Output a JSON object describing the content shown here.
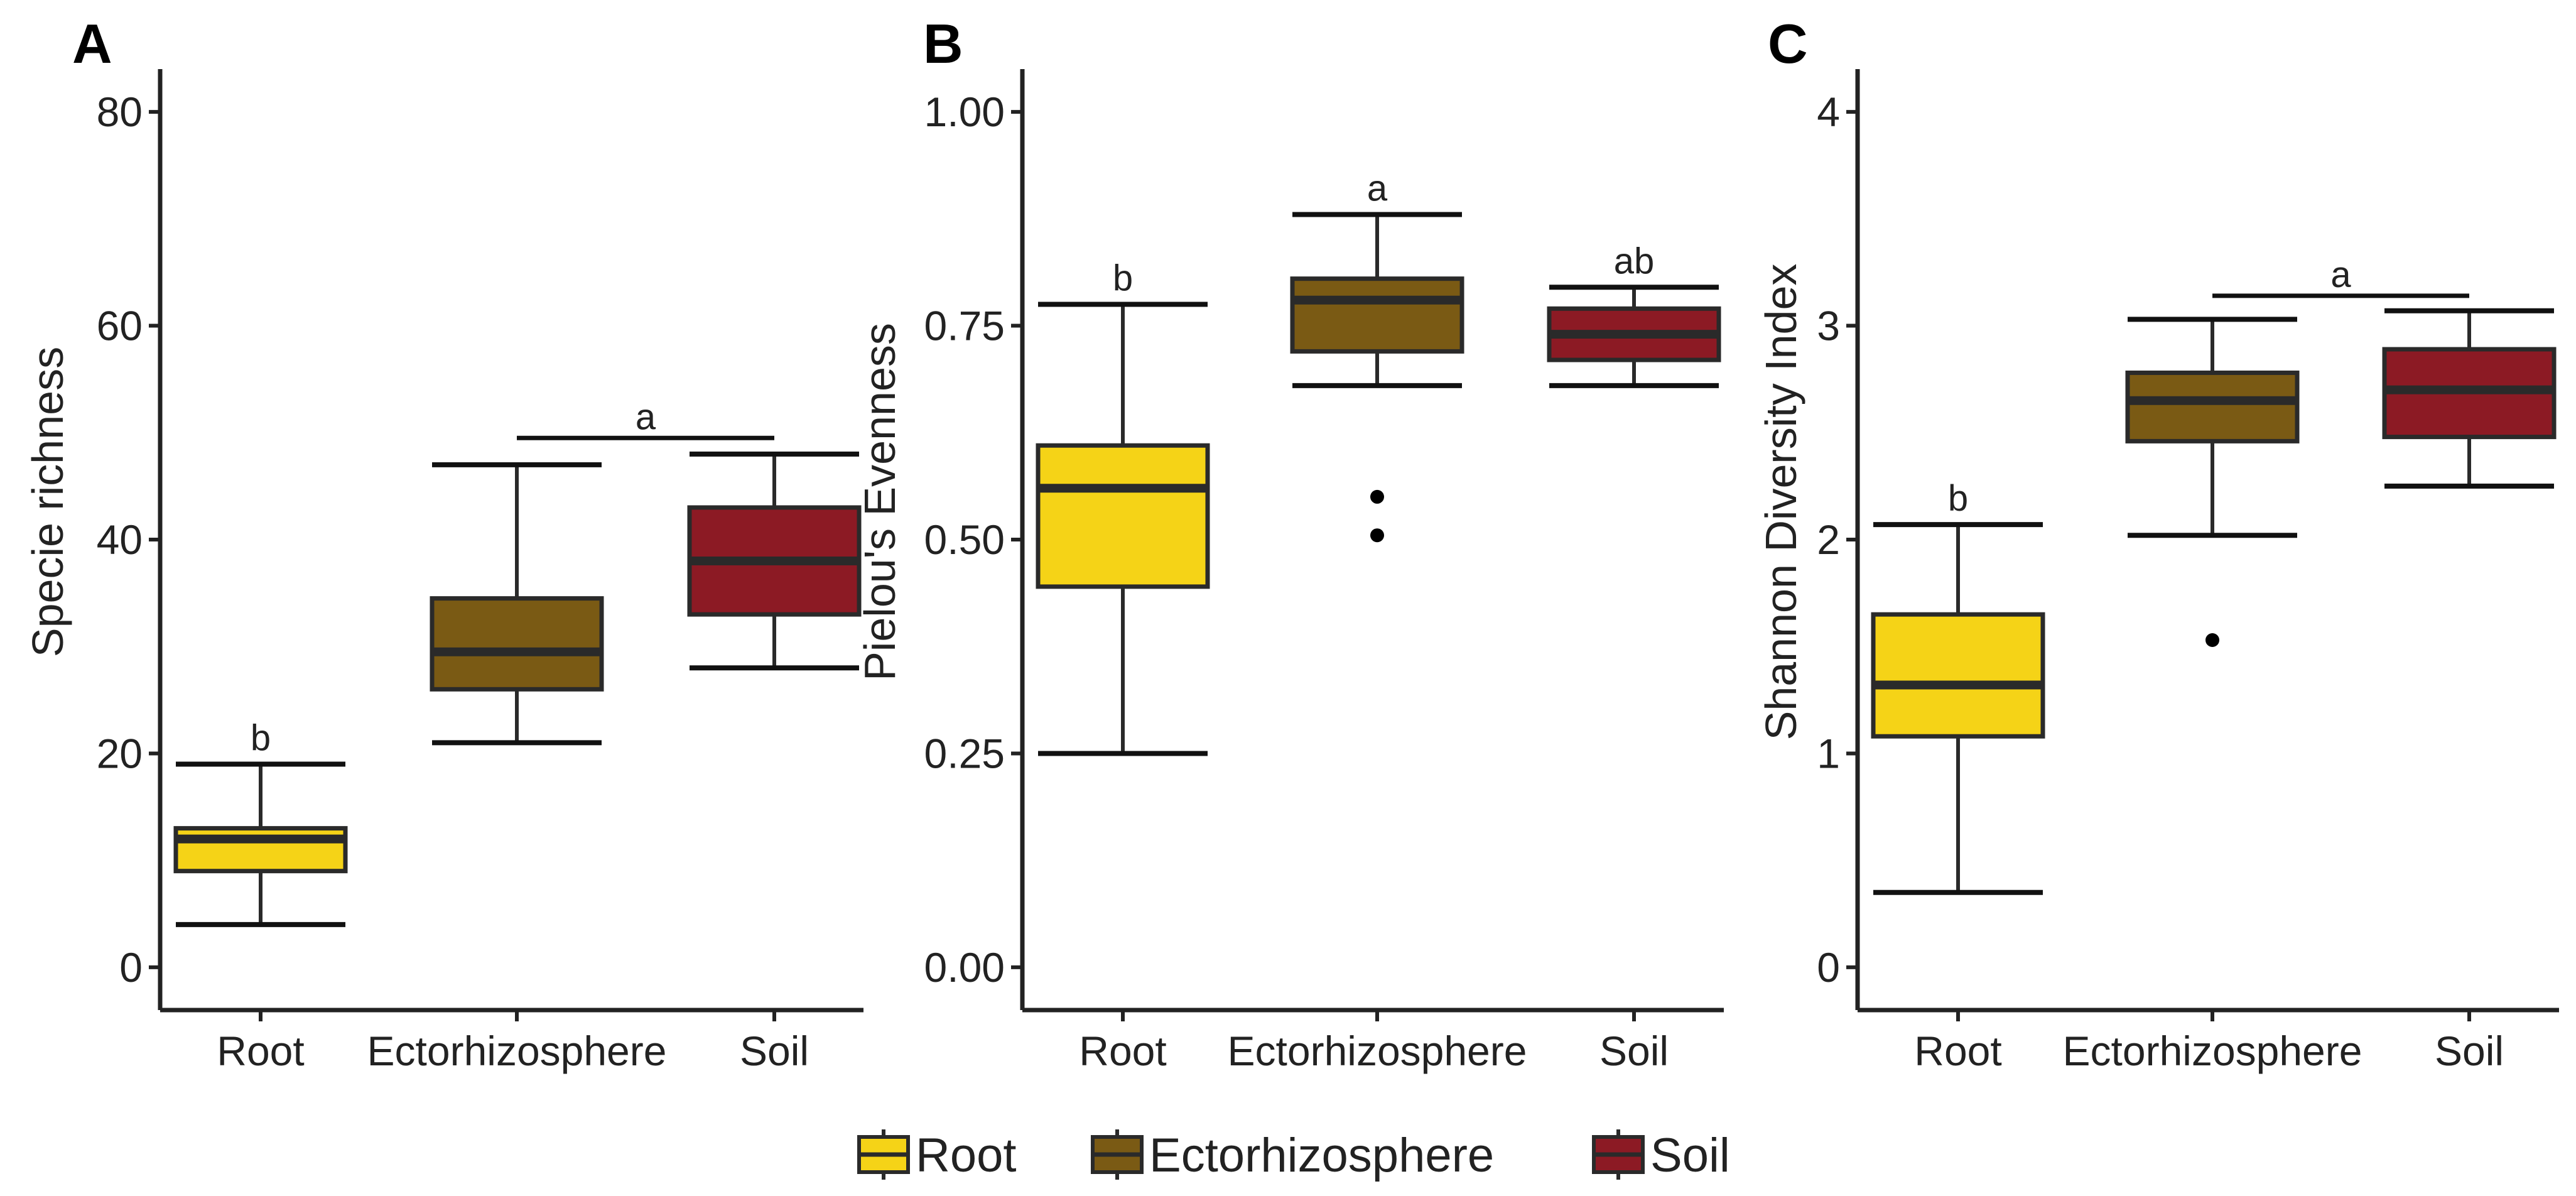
{
  "chart_data": [
    {
      "panel": "A",
      "type": "box",
      "ylabel": "Specie richness",
      "xlabel": "",
      "ylim": [
        -4,
        84
      ],
      "yticks": [
        0,
        20,
        40,
        60,
        80
      ],
      "ytick_labels": [
        "0",
        "20",
        "40",
        "60",
        "80"
      ],
      "categories": [
        "Root",
        "Ectorhizosphere",
        "Soil"
      ],
      "boxes": [
        {
          "group": "Root",
          "min": 4,
          "q1": 9,
          "median": 12,
          "q3": 13,
          "max": 19,
          "outliers": []
        },
        {
          "group": "Ectorhizosphere",
          "min": 21,
          "q1": 26,
          "median": 29.5,
          "q3": 34.5,
          "max": 47,
          "outliers": []
        },
        {
          "group": "Soil",
          "min": 28,
          "q1": 33,
          "median": 38,
          "q3": 43,
          "max": 48,
          "outliers": []
        }
      ],
      "annotations": [
        {
          "text": "b",
          "groups": [
            "Root"
          ],
          "y": 19
        },
        {
          "text": "a",
          "groups": [
            "Ectorhizosphere",
            "Soil"
          ],
          "y": 49.5
        }
      ]
    },
    {
      "panel": "B",
      "type": "box",
      "ylabel": "Pielou's Evenness",
      "xlabel": "",
      "ylim": [
        -0.05,
        1.05
      ],
      "yticks": [
        0,
        0.25,
        0.5,
        0.75,
        1
      ],
      "ytick_labels": [
        "0.00",
        "0.25",
        "0.50",
        "0.75",
        "1.00"
      ],
      "categories": [
        "Root",
        "Ectorhizosphere",
        "Soil"
      ],
      "boxes": [
        {
          "group": "Root",
          "min": 0.25,
          "q1": 0.445,
          "median": 0.56,
          "q3": 0.61,
          "max": 0.775,
          "outliers": []
        },
        {
          "group": "Ectorhizosphere",
          "min": 0.68,
          "q1": 0.72,
          "median": 0.78,
          "q3": 0.805,
          "max": 0.88,
          "outliers": [
            0.55,
            0.505
          ]
        },
        {
          "group": "Soil",
          "min": 0.68,
          "q1": 0.71,
          "median": 0.74,
          "q3": 0.77,
          "max": 0.795,
          "outliers": []
        }
      ],
      "annotations": [
        {
          "text": "b",
          "groups": [
            "Root"
          ],
          "y": 0.775
        },
        {
          "text": "a",
          "groups": [
            "Ectorhizosphere"
          ],
          "y": 0.88
        },
        {
          "text": "ab",
          "groups": [
            "Soil"
          ],
          "y": 0.795
        }
      ]
    },
    {
      "panel": "C",
      "type": "box",
      "ylabel": "Shannon Diversity Index",
      "xlabel": "",
      "ylim": [
        -0.2,
        4.2
      ],
      "yticks": [
        0,
        1,
        2,
        3,
        4
      ],
      "ytick_labels": [
        "0",
        "1",
        "2",
        "3",
        "4"
      ],
      "categories": [
        "Root",
        "Ectorhizosphere",
        "Soil"
      ],
      "boxes": [
        {
          "group": "Root",
          "min": 0.35,
          "q1": 1.08,
          "median": 1.32,
          "q3": 1.65,
          "max": 2.07,
          "outliers": []
        },
        {
          "group": "Ectorhizosphere",
          "min": 2.02,
          "q1": 2.46,
          "median": 2.65,
          "q3": 2.78,
          "max": 3.03,
          "outliers": [
            1.53
          ]
        },
        {
          "group": "Soil",
          "min": 2.25,
          "q1": 2.48,
          "median": 2.7,
          "q3": 2.89,
          "max": 3.07,
          "outliers": []
        }
      ],
      "annotations": [
        {
          "text": "b",
          "groups": [
            "Root"
          ],
          "y": 2.07
        },
        {
          "text": "a",
          "groups": [
            "Ectorhizosphere",
            "Soil"
          ],
          "y": 3.14
        }
      ]
    }
  ],
  "legend": {
    "position": "bottom",
    "items": [
      {
        "label": "Root",
        "color": "#f5d317"
      },
      {
        "label": "Ectorhizosphere",
        "color": "#7a5a14"
      },
      {
        "label": "Soil",
        "color": "#8c1a24"
      }
    ]
  },
  "colors": {
    "Root": "#f5d317",
    "Ectorhizosphere": "#7a5a14",
    "Soil": "#8c1a24",
    "outline": "#2a2a2a"
  }
}
